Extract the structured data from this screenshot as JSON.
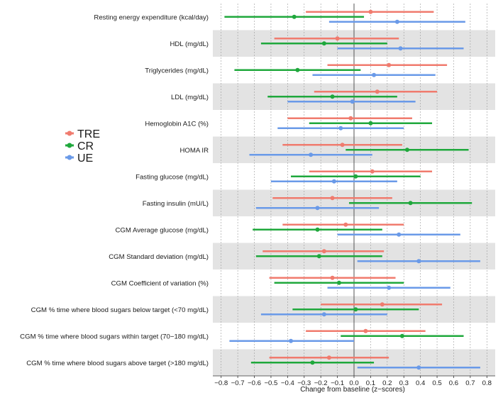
{
  "chart_data": {
    "type": "forest",
    "title": "",
    "xlabel": "Change from baseline (z−scores)",
    "ylabel": "",
    "xlim": [
      -0.85,
      0.85
    ],
    "x_ticks": [
      -0.8,
      -0.7,
      -0.6,
      -0.5,
      -0.4,
      -0.3,
      -0.2,
      -0.1,
      0.0,
      0.1,
      0.2,
      0.3,
      0.4,
      0.5,
      0.6,
      0.7,
      0.8
    ],
    "x_tick_labels": [
      "−0.8",
      "−0.7",
      "−0.6",
      "−0.5",
      "−0.4",
      "−0.3",
      "−0.2",
      "−0.1",
      "0.0",
      "0.1",
      "0.2",
      "0.3",
      "0.4",
      "0.5",
      "0.6",
      "0.7",
      "0.8"
    ],
    "reference_line": 0,
    "grid": true,
    "legend_position": "left",
    "categories": [
      "Resting energy expenditure (kcal/day)",
      "HDL (mg/dL)",
      "Triglycerides (mg/dL)",
      "LDL (mg/dL)",
      "Hemoglobin A1C (%)",
      "HOMA IR",
      "Fasting glucose (mg/dL)",
      "Fasting insulin (mU/L)",
      "CGM Average glucose (mg/dL)",
      "CGM Standard deviation (mg/dL)",
      "CGM Coefficient of variation (%)",
      "CGM % time where blood sugars below target  (<70 mg/dL)",
      "CGM % time where blood sugars within target (70−180 mg/dL)",
      "CGM % time where blood sugars above target (>180 mg/dL)"
    ],
    "series": [
      {
        "name": "TRE",
        "color": "#f07b6e",
        "estimates": [
          0.1,
          -0.1,
          0.21,
          0.14,
          -0.02,
          -0.07,
          0.11,
          -0.13,
          -0.05,
          -0.18,
          -0.13,
          0.17,
          0.07,
          -0.15
        ],
        "lower": [
          -0.29,
          -0.48,
          -0.16,
          -0.24,
          -0.4,
          -0.43,
          -0.27,
          -0.49,
          -0.43,
          -0.55,
          -0.51,
          -0.2,
          -0.29,
          -0.51
        ],
        "upper": [
          0.48,
          0.27,
          0.56,
          0.5,
          0.35,
          0.29,
          0.47,
          0.23,
          0.3,
          0.18,
          0.25,
          0.53,
          0.43,
          0.21
        ]
      },
      {
        "name": "CR",
        "color": "#1fa83c",
        "estimates": [
          -0.36,
          -0.18,
          -0.34,
          -0.13,
          0.1,
          0.32,
          0.01,
          0.34,
          -0.22,
          -0.21,
          -0.09,
          0.01,
          0.29,
          -0.25
        ],
        "lower": [
          -0.78,
          -0.56,
          -0.72,
          -0.52,
          -0.27,
          -0.05,
          -0.38,
          -0.03,
          -0.61,
          -0.59,
          -0.48,
          -0.37,
          -0.08,
          -0.62
        ],
        "upper": [
          0.06,
          0.2,
          0.04,
          0.26,
          0.47,
          0.69,
          0.4,
          0.71,
          0.17,
          0.17,
          0.3,
          0.39,
          0.66,
          0.12
        ]
      },
      {
        "name": "UE",
        "color": "#6a9ae8",
        "estimates": [
          0.26,
          0.28,
          0.12,
          -0.01,
          -0.08,
          -0.26,
          -0.12,
          -0.22,
          0.27,
          0.39,
          0.21,
          -0.18,
          -0.38,
          0.39
        ],
        "lower": [
          -0.15,
          -0.1,
          -0.25,
          -0.4,
          -0.46,
          -0.63,
          -0.5,
          -0.59,
          -0.1,
          0.02,
          -0.16,
          -0.56,
          -0.75,
          0.02
        ],
        "upper": [
          0.67,
          0.66,
          0.49,
          0.37,
          0.3,
          0.11,
          0.26,
          0.15,
          0.64,
          0.76,
          0.58,
          0.2,
          0.0,
          0.76
        ]
      }
    ]
  }
}
